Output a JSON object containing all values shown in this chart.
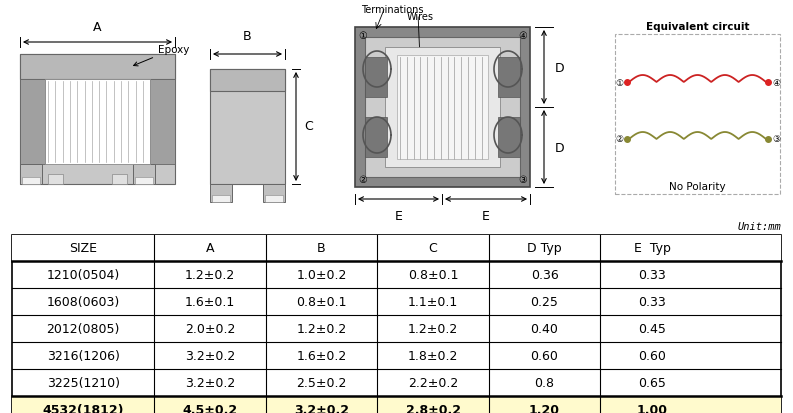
{
  "unit_text": "Unit:mm",
  "table_headers": [
    "SIZE",
    "A",
    "B",
    "C",
    "D Typ",
    "E  Typ"
  ],
  "table_rows": [
    [
      "1210(0504)",
      "1.2±0.2",
      "1.0±0.2",
      "0.8±0.1",
      "0.36",
      "0.33"
    ],
    [
      "1608(0603)",
      "1.6±0.1",
      "0.8±0.1",
      "1.1±0.1",
      "0.25",
      "0.33"
    ],
    [
      "2012(0805)",
      "2.0±0.2",
      "1.2±0.2",
      "1.2±0.2",
      "0.40",
      "0.45"
    ],
    [
      "3216(1206)",
      "3.2±0.2",
      "1.6±0.2",
      "1.8±0.2",
      "0.60",
      "0.60"
    ],
    [
      "3225(1210)",
      "3.2±0.2",
      "2.5±0.2",
      "2.2±0.2",
      "0.8",
      "0.65"
    ],
    [
      "4532(1812)",
      "4.5±0.2",
      "3.2±0.2",
      "2.8±0.2",
      "1.20",
      "1.00"
    ]
  ],
  "highlight_row": 5,
  "bg_color": "#ffffff"
}
